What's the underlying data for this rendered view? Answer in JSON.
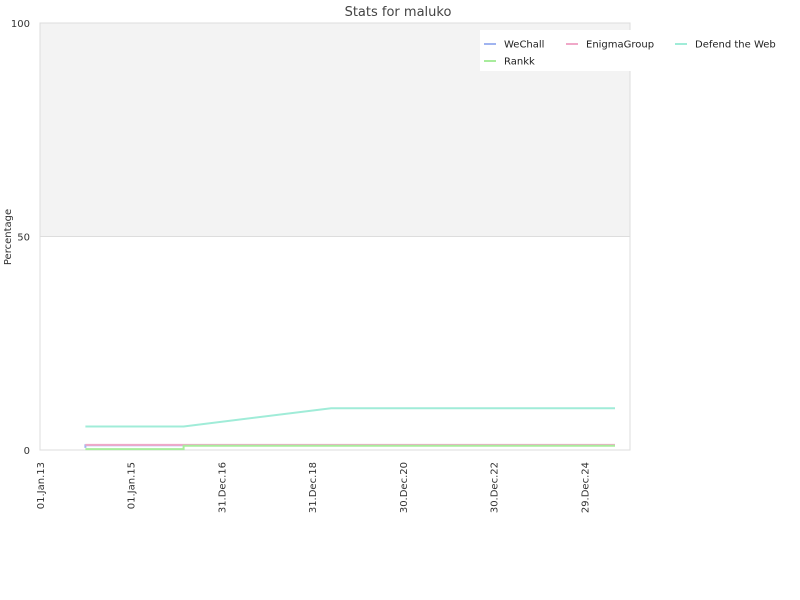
{
  "chart_data": {
    "type": "line",
    "title": "Stats for maluko",
    "ylabel": "Percentage",
    "xlabel": "",
    "ylim": [
      0,
      100
    ],
    "y_ticks": [
      "0",
      "50",
      "100"
    ],
    "x_ticks": [
      "01.Jan.13",
      "01.Jan.15",
      "31.Dec.16",
      "31.Dec.18",
      "30.Dec.20",
      "30.Dec.22",
      "29.Dec.24"
    ],
    "x_range": [
      "2013-01-01",
      "2025-12-31"
    ],
    "upper_band_shaded": true,
    "legend_placement": "top-right",
    "series": [
      {
        "name": "WeChall",
        "color": "#a0b4f0",
        "points": [
          [
            "2014-01-01",
            0.5
          ],
          [
            "2014-01-01",
            1.1
          ],
          [
            "2025-09-01",
            1.1
          ]
        ]
      },
      {
        "name": "EnigmaGroup",
        "color": "#f0a8c8",
        "points": [
          [
            "2014-01-01",
            1.2
          ],
          [
            "2025-09-01",
            1.2
          ]
        ]
      },
      {
        "name": "Defend the Web",
        "color": "#a0ecd8",
        "points": [
          [
            "2014-01-01",
            5.5
          ],
          [
            "2016-03-01",
            5.5
          ],
          [
            "2019-06-01",
            9.8
          ],
          [
            "2025-09-01",
            9.8
          ]
        ]
      },
      {
        "name": "Rankk",
        "color": "#a8ec9c",
        "points": [
          [
            "2014-01-01",
            0.2
          ],
          [
            "2016-03-01",
            0.2
          ],
          [
            "2016-03-01",
            0.6
          ],
          [
            "2016-03-01",
            1.0
          ],
          [
            "2025-09-01",
            1.0
          ]
        ]
      }
    ]
  }
}
